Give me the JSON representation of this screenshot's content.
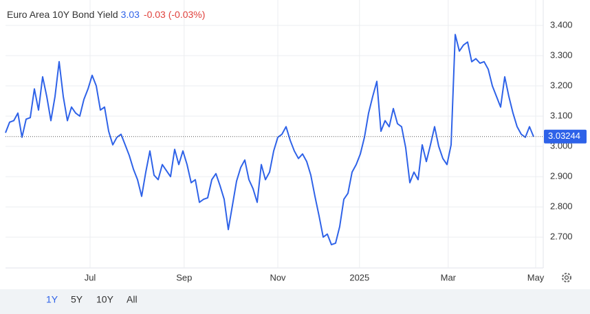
{
  "header": {
    "title": "Euro Area 10Y Bond Yield",
    "price": "3.03",
    "change": "-0.03 (-0.03%)"
  },
  "range_buttons": [
    "1Y",
    "5Y",
    "10Y",
    "All"
  ],
  "active_range": 0,
  "chart_data": {
    "type": "line",
    "color": "#2e62e8",
    "values": [
      3.045,
      3.08,
      3.085,
      3.11,
      3.03,
      3.09,
      3.095,
      3.19,
      3.12,
      3.23,
      3.165,
      3.085,
      3.165,
      3.28,
      3.165,
      3.085,
      3.13,
      3.11,
      3.1,
      3.155,
      3.19,
      3.235,
      3.2,
      3.12,
      3.13,
      3.05,
      3.005,
      3.03,
      3.04,
      3.005,
      2.97,
      2.925,
      2.89,
      2.835,
      2.915,
      2.985,
      2.905,
      2.89,
      2.94,
      2.92,
      2.9,
      2.99,
      2.94,
      2.985,
      2.94,
      2.88,
      2.89,
      2.815,
      2.825,
      2.83,
      2.89,
      2.91,
      2.87,
      2.825,
      2.725,
      2.805,
      2.885,
      2.93,
      2.955,
      2.89,
      2.86,
      2.815,
      2.94,
      2.89,
      2.915,
      2.985,
      3.03,
      3.04,
      3.065,
      3.02,
      2.985,
      2.96,
      2.975,
      2.95,
      2.905,
      2.835,
      2.77,
      2.7,
      2.71,
      2.675,
      2.68,
      2.735,
      2.825,
      2.845,
      2.915,
      2.94,
      2.975,
      3.03,
      3.11,
      3.165,
      3.215,
      3.05,
      3.085,
      3.065,
      3.125,
      3.075,
      3.065,
      2.995,
      2.88,
      2.915,
      2.89,
      3.005,
      2.95,
      3.005,
      3.065,
      3.0,
      2.96,
      2.94,
      3.005,
      3.37,
      3.315,
      3.335,
      3.345,
      3.28,
      3.29,
      3.275,
      3.28,
      3.255,
      3.2,
      3.165,
      3.13,
      3.23,
      3.165,
      3.11,
      3.065,
      3.04,
      3.03,
      3.065,
      3.032
    ],
    "xlim": [
      0,
      130.33
    ],
    "xticks": [
      {
        "value": 20.5,
        "label": "Jul"
      },
      {
        "value": 43.3,
        "label": "Sep"
      },
      {
        "value": 66,
        "label": "Nov"
      },
      {
        "value": 85.8,
        "label": "2025"
      },
      {
        "value": 107.3,
        "label": "Mar"
      },
      {
        "value": 128.5,
        "label": "May"
      }
    ],
    "ylim": [
      2.598,
      3.484
    ],
    "yticks": [
      {
        "value": 2.7,
        "label": "2.700"
      },
      {
        "value": 2.8,
        "label": "2.800"
      },
      {
        "value": 2.9,
        "label": "2.900"
      },
      {
        "value": 3.0,
        "label": "3.000"
      },
      {
        "value": 3.1,
        "label": "3.100"
      },
      {
        "value": 3.2,
        "label": "3.200"
      },
      {
        "value": 3.3,
        "label": "3.300"
      },
      {
        "value": 3.4,
        "label": "3.400"
      }
    ],
    "last_price": {
      "value": 3.03244,
      "label": "3.03244"
    },
    "grid": true
  }
}
